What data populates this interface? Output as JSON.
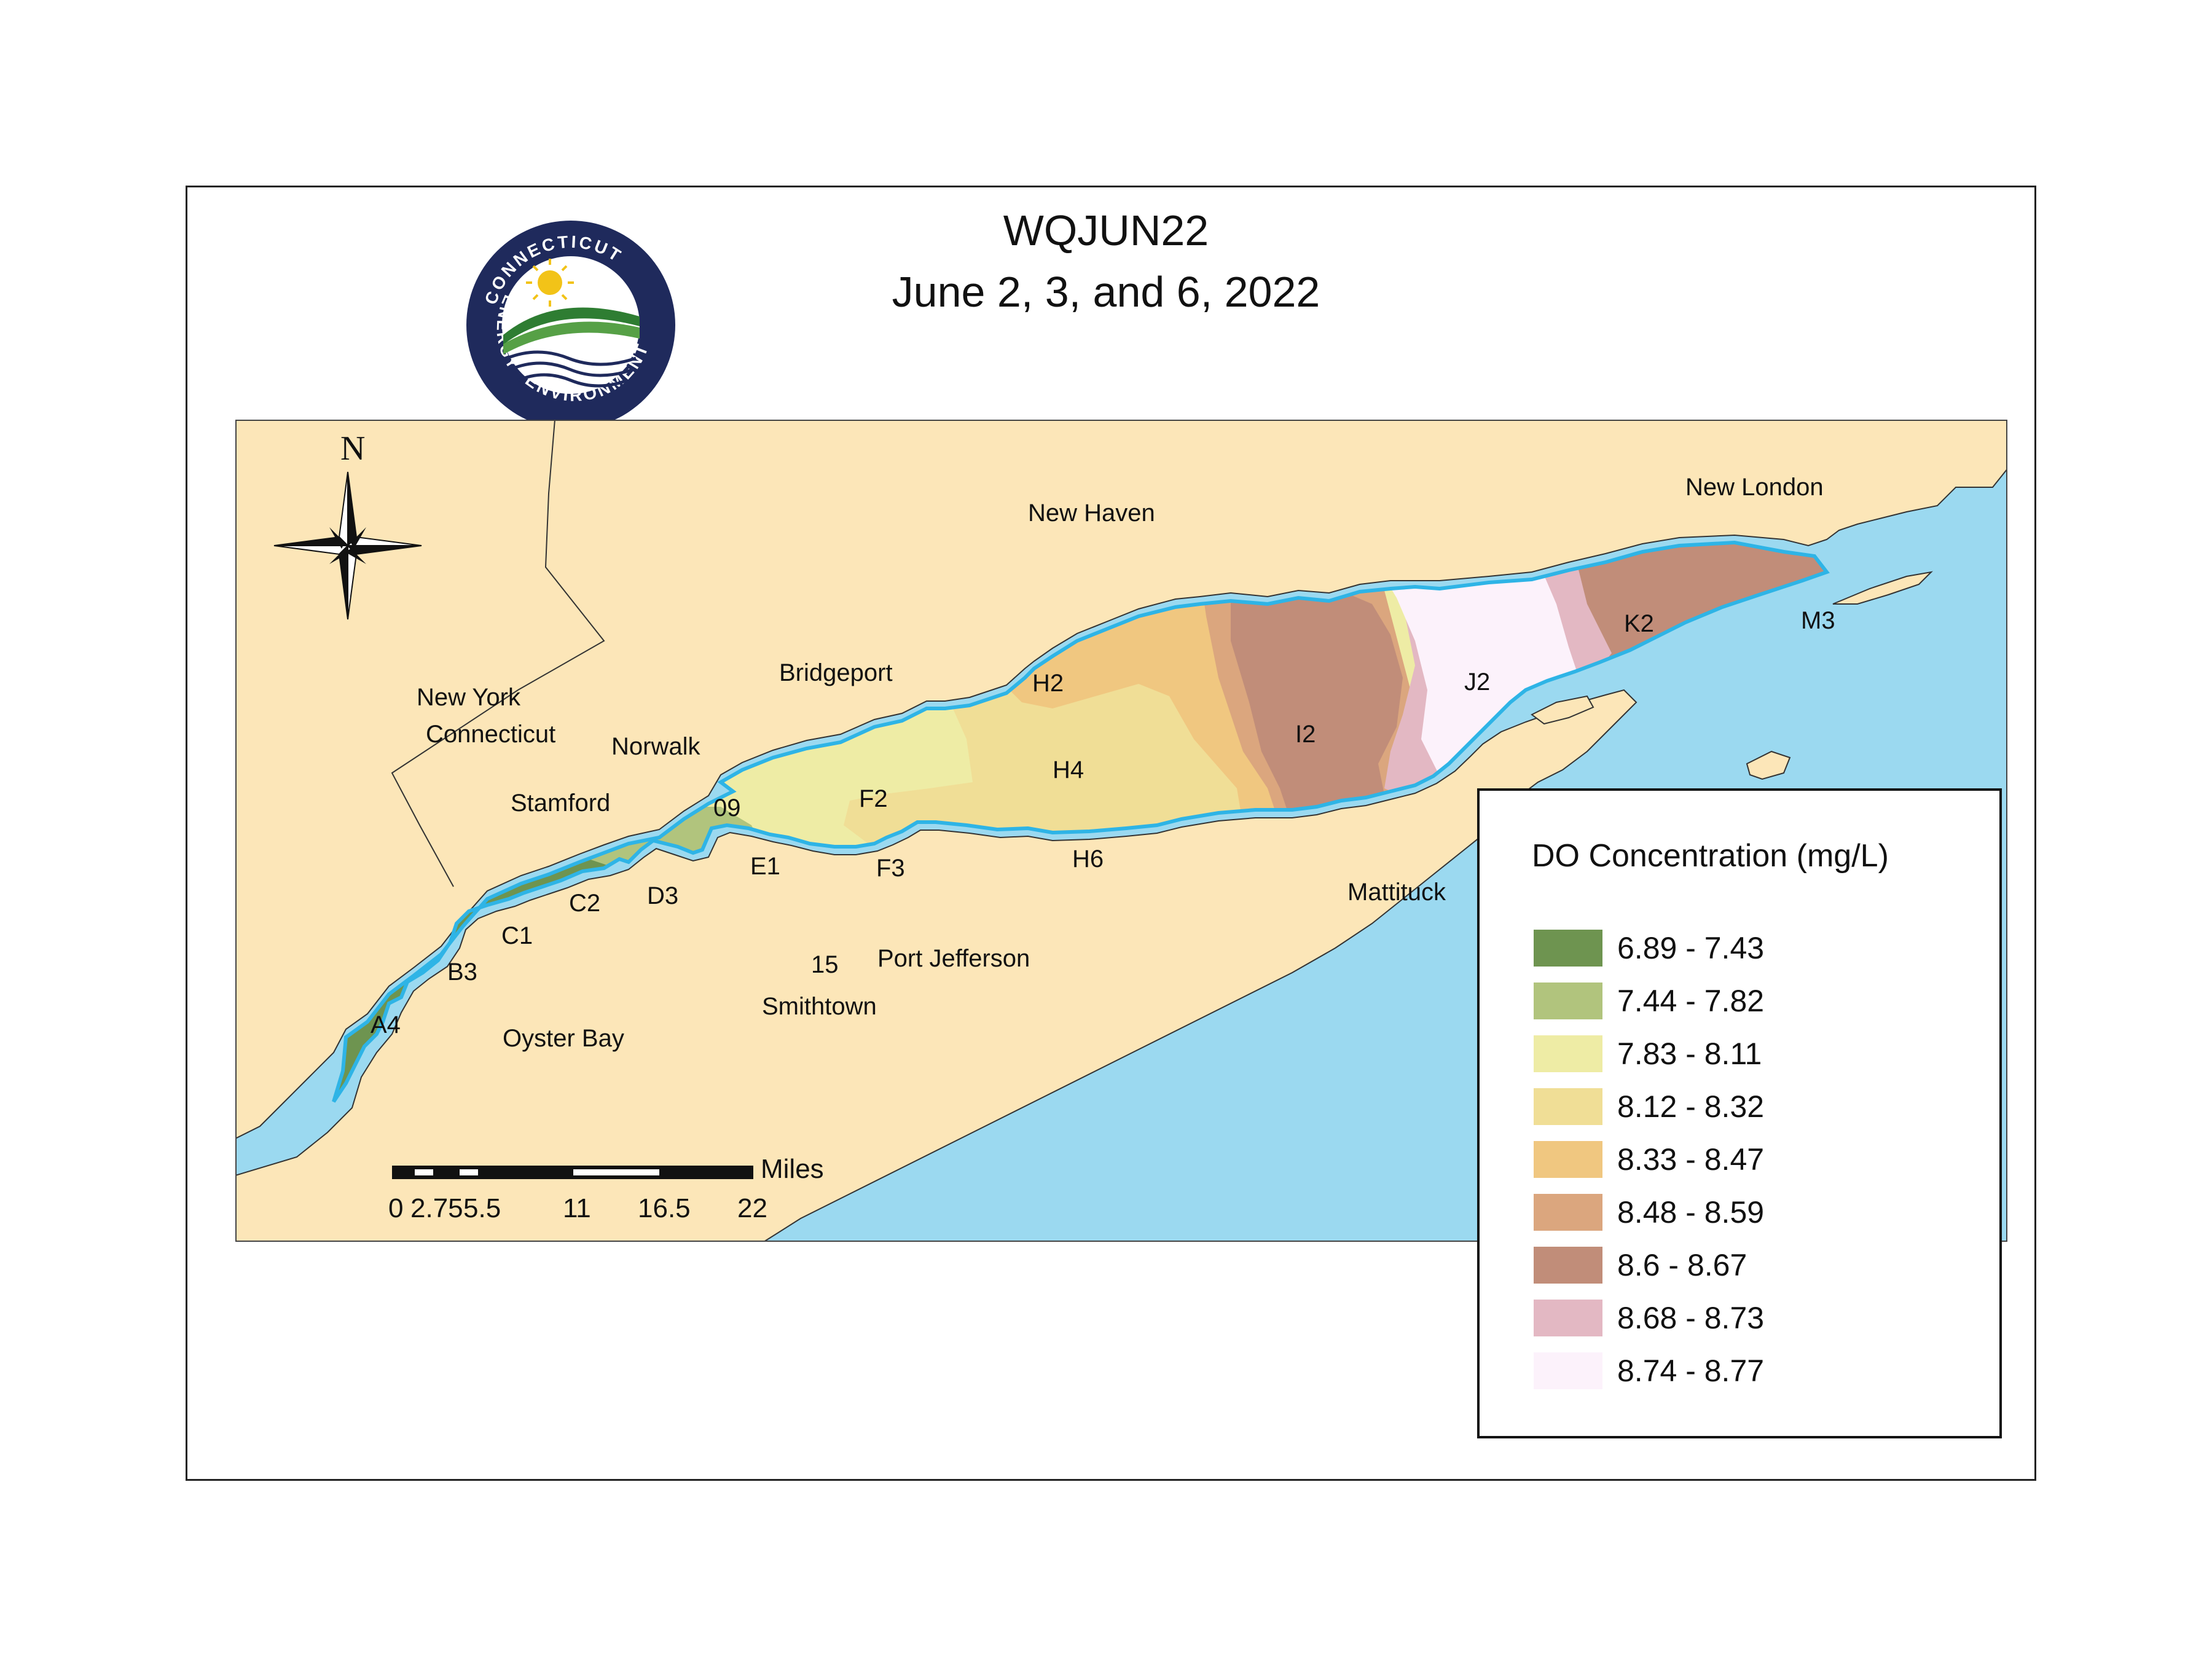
{
  "title": {
    "line1": "WQJUN22",
    "line2": "June 2, 3, and 6, 2022"
  },
  "logo": {
    "top_text": "CONNECTICUT",
    "left_text": "ENERGY",
    "bottom_text": "ENVIRONMENT",
    "ring_color": "#1f2a5c",
    "sun_color": "#f2c318",
    "hill_color": "#2e7d32"
  },
  "compass": {
    "north_label": "N"
  },
  "place_labels": {
    "new_haven": "New Haven",
    "new_london": "New London",
    "bridgeport": "Bridgeport",
    "new_york": "New York",
    "connecticut": "Connecticut",
    "norwalk": "Norwalk",
    "stamford": "Stamford",
    "port_jefferson": "Port Jefferson",
    "smithtown": "Smithtown",
    "oyster_bay": "Oyster Bay",
    "mattituck": "Mattituck"
  },
  "stations": [
    "A4",
    "B3",
    "C1",
    "C2",
    "D3",
    "09",
    "E1",
    "F2",
    "F3",
    "15",
    "H2",
    "H4",
    "H6",
    "I2",
    "J2",
    "K2",
    "M3"
  ],
  "legend": {
    "title": "DO Concentration (mg/L)",
    "items": [
      {
        "label": "6.89 - 7.43",
        "color": "#6e9450"
      },
      {
        "label": "7.44 - 7.82",
        "color": "#b1c47d"
      },
      {
        "label": "7.83 - 8.11",
        "color": "#eeeca5"
      },
      {
        "label": "8.12 - 8.32",
        "color": "#f0de96"
      },
      {
        "label": "8.33 - 8.47",
        "color": "#f0c780"
      },
      {
        "label": "8.48 - 8.59",
        "color": "#dba67e"
      },
      {
        "label": "8.6 - 8.67",
        "color": "#c18d79"
      },
      {
        "label": "8.68 - 8.73",
        "color": "#e3b8c3"
      },
      {
        "label": "8.74 - 8.77",
        "color": "#fcf2fb"
      }
    ]
  },
  "scalebar": {
    "ticks": [
      "0",
      "2.75",
      "5.5",
      "11",
      "16.5",
      "22"
    ],
    "unit": "Miles"
  },
  "colors": {
    "land": "#fce6b8",
    "water": "#9bd9f0",
    "sound_outline": "#2eb4e6"
  }
}
